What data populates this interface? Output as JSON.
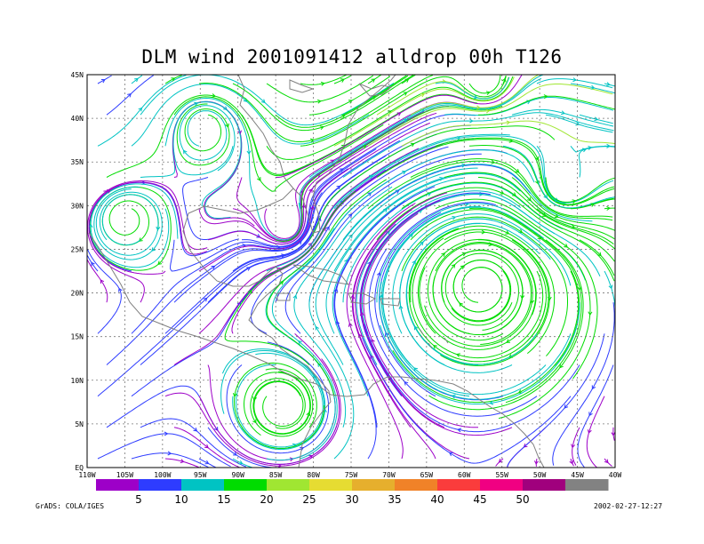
{
  "title": "DLM wind 2001091412 alldrop 00h T126",
  "lat_labels": [
    "EQ",
    "5N",
    "10N",
    "15N",
    "20N",
    "25N",
    "30N",
    "35N",
    "40N",
    "45N"
  ],
  "lon_labels": [
    "110W",
    "105W",
    "100W",
    "95W",
    "90W",
    "85W",
    "80W",
    "75W",
    "70W",
    "65W",
    "60W",
    "55W",
    "50W",
    "45W",
    "40W"
  ],
  "colorbar": {
    "colors": [
      "#9d00c8",
      "#2e3cff",
      "#00c3c3",
      "#00dc00",
      "#a0e632",
      "#e6dc32",
      "#e6af2d",
      "#f08228",
      "#fa3c3c",
      "#f00082",
      "#a0007d",
      "#828282"
    ],
    "tick_labels": [
      "5",
      "10",
      "15",
      "20",
      "25",
      "30",
      "35",
      "40",
      "45",
      "50"
    ]
  },
  "credit": "GrADS: COLA/IGES",
  "timestamp": "2002-02-27-12:27"
}
